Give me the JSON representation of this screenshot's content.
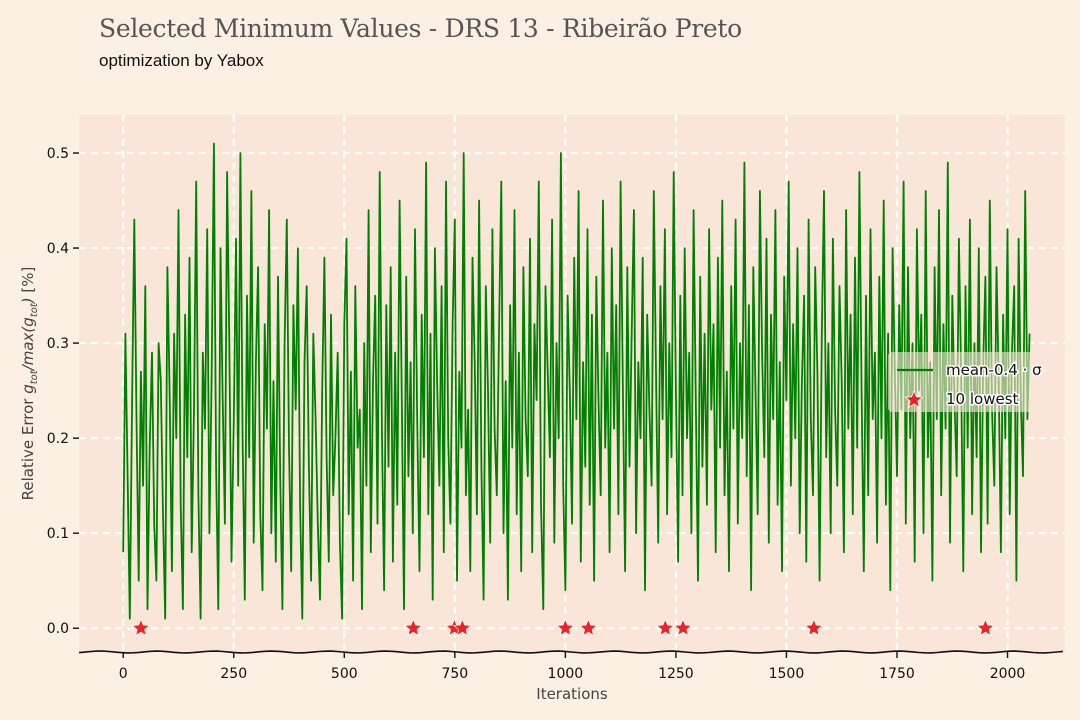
{
  "title": "Selected Minimum Values - DRS 13 - Ribeirão Preto",
  "subtitle": "optimization by Yabox",
  "colors": {
    "background": "#fcefe3",
    "plot_background": "#f9e6d9",
    "line": "#008000",
    "marker": "#ee2222",
    "grid": "#ffffff"
  },
  "legend_labels": {
    "line": "mean-0.4 · σ",
    "markers": "10 lowest"
  },
  "chart_data": {
    "type": "line",
    "title": "Selected Minimum Values - DRS 13 - Ribeirão Preto",
    "subtitle": "optimization by Yabox",
    "xlabel": "Iterations",
    "ylabel": "Relative Error g_tot/max(g_tot) [%]",
    "xlim": [
      -100,
      2130
    ],
    "ylim": [
      -0.025,
      0.54
    ],
    "xticks": [
      0,
      250,
      500,
      750,
      1000,
      1250,
      1500,
      1750,
      2000
    ],
    "xtick_labels": [
      "0",
      "250",
      "500",
      "750",
      "1000",
      "1250",
      "1500",
      "1750",
      "2000"
    ],
    "yticks": [
      0.0,
      0.1,
      0.2,
      0.3,
      0.4,
      0.5
    ],
    "ytick_labels": [
      "0.0",
      "0.1",
      "0.2",
      "0.3",
      "0.4",
      "0.5"
    ],
    "grid": true,
    "legend_position": "right",
    "series": [
      {
        "name": "mean-0.4 · σ",
        "kind": "line",
        "color": "#008000",
        "x_start": 0,
        "x_step": 5,
        "values": [
          0.08,
          0.31,
          0.16,
          0.01,
          0.24,
          0.43,
          0.22,
          0.05,
          0.27,
          0.15,
          0.36,
          0.02,
          0.19,
          0.29,
          0.11,
          0.05,
          0.3,
          0.26,
          0.12,
          0.01,
          0.38,
          0.25,
          0.06,
          0.31,
          0.2,
          0.44,
          0.13,
          0.02,
          0.33,
          0.18,
          0.39,
          0.08,
          0.23,
          0.47,
          0.14,
          0.01,
          0.29,
          0.21,
          0.42,
          0.1,
          0.26,
          0.51,
          0.17,
          0.02,
          0.4,
          0.24,
          0.11,
          0.48,
          0.3,
          0.07,
          0.22,
          0.41,
          0.15,
          0.5,
          0.2,
          0.03,
          0.35,
          0.18,
          0.46,
          0.09,
          0.28,
          0.38,
          0.12,
          0.04,
          0.32,
          0.21,
          0.44,
          0.1,
          0.26,
          0.07,
          0.37,
          0.16,
          0.02,
          0.3,
          0.43,
          0.19,
          0.06,
          0.34,
          0.23,
          0.4,
          0.13,
          0.01,
          0.28,
          0.36,
          0.17,
          0.05,
          0.31,
          0.22,
          0.11,
          0.03,
          0.25,
          0.39,
          0.18,
          0.07,
          0.33,
          0.14,
          0.2,
          0.29,
          0.09,
          0.01,
          0.32,
          0.41,
          0.12,
          0.27,
          0.05,
          0.36,
          0.19,
          0.23,
          0.02,
          0.3,
          0.15,
          0.44,
          0.08,
          0.26,
          0.35,
          0.11,
          0.48,
          0.21,
          0.04,
          0.34,
          0.17,
          0.38,
          0.07,
          0.29,
          0.13,
          0.45,
          0.24,
          0.02,
          0.37,
          0.16,
          0.28,
          0.1,
          0.42,
          0.22,
          0.06,
          0.33,
          0.18,
          0.49,
          0.12,
          0.31,
          0.03,
          0.4,
          0.26,
          0.15,
          0.36,
          0.08,
          0.47,
          0.2,
          0.11,
          0.32,
          0.43,
          0.05,
          0.27,
          0.19,
          0.5,
          0.14,
          0.23,
          0.06,
          0.39,
          0.28,
          0.12,
          0.45,
          0.17,
          0.03,
          0.36,
          0.25,
          0.09,
          0.42,
          0.21,
          0.14,
          0.31,
          0.47,
          0.1,
          0.26,
          0.03,
          0.34,
          0.19,
          0.44,
          0.12,
          0.29,
          0.06,
          0.38,
          0.22,
          0.16,
          0.41,
          0.08,
          0.32,
          0.24,
          0.47,
          0.13,
          0.02,
          0.36,
          0.27,
          0.18,
          0.43,
          0.09,
          0.3,
          0.2,
          0.5,
          0.15,
          0.04,
          0.35,
          0.25,
          0.11,
          0.39,
          0.22,
          0.46,
          0.07,
          0.28,
          0.17,
          0.42,
          0.13,
          0.33,
          0.05,
          0.37,
          0.24,
          0.14,
          0.45,
          0.19,
          0.29,
          0.08,
          0.4,
          0.21,
          0.34,
          0.12,
          0.47,
          0.26,
          0.06,
          0.38,
          0.17,
          0.31,
          0.44,
          0.1,
          0.28,
          0.2,
          0.39,
          0.04,
          0.33,
          0.23,
          0.15,
          0.46,
          0.27,
          0.09,
          0.36,
          0.22,
          0.42,
          0.12,
          0.3,
          0.18,
          0.48,
          0.25,
          0.07,
          0.35,
          0.14,
          0.4,
          0.2,
          0.29,
          0.1,
          0.44,
          0.24,
          0.05,
          0.37,
          0.17,
          0.31,
          0.13,
          0.42,
          0.23,
          0.32,
          0.08,
          0.39,
          0.19,
          0.45,
          0.14,
          0.27,
          0.06,
          0.36,
          0.21,
          0.43,
          0.11,
          0.3,
          0.2,
          0.49,
          0.16,
          0.34,
          0.04,
          0.38,
          0.25,
          0.12,
          0.46,
          0.29,
          0.18,
          0.41,
          0.09,
          0.33,
          0.22,
          0.44,
          0.13,
          0.28,
          0.06,
          0.37,
          0.24,
          0.47,
          0.15,
          0.32,
          0.2,
          0.4,
          0.1,
          0.26,
          0.35,
          0.07,
          0.43,
          0.22,
          0.14,
          0.38,
          0.27,
          0.05,
          0.31,
          0.46,
          0.18,
          0.3,
          0.1,
          0.41,
          0.23,
          0.15,
          0.36,
          0.26,
          0.08,
          0.44,
          0.21,
          0.33,
          0.12,
          0.39,
          0.19,
          0.48,
          0.25,
          0.06,
          0.35,
          0.14,
          0.42,
          0.22,
          0.29,
          0.09,
          0.37,
          0.2,
          0.45,
          0.13,
          0.31,
          0.04,
          0.4,
          0.27,
          0.16,
          0.34,
          0.23,
          0.47,
          0.11,
          0.38,
          0.2,
          0.3,
          0.07,
          0.42,
          0.25,
          0.33,
          0.1,
          0.46,
          0.18,
          0.28,
          0.05,
          0.38,
          0.22,
          0.44,
          0.14,
          0.32,
          0.21,
          0.49,
          0.09,
          0.35,
          0.24,
          0.16,
          0.41,
          0.27,
          0.06,
          0.36,
          0.19,
          0.43,
          0.12,
          0.3,
          0.18,
          0.4,
          0.08,
          0.28,
          0.37,
          0.11,
          0.45,
          0.23,
          0.15,
          0.38,
          0.26,
          0.08,
          0.33,
          0.2,
          0.42,
          0.12,
          0.29,
          0.36,
          0.05,
          0.41,
          0.24,
          0.16,
          0.46,
          0.22,
          0.31
        ]
      },
      {
        "name": "10 lowest",
        "kind": "markers",
        "color": "#ee2222",
        "x": [
          40,
          656,
          749,
          767,
          1000,
          1052,
          1226,
          1266,
          1562,
          1950
        ],
        "y": [
          0.0,
          0.0,
          0.0,
          0.0,
          0.0,
          0.0,
          0.0,
          0.0,
          0.0,
          0.0
        ]
      }
    ]
  }
}
